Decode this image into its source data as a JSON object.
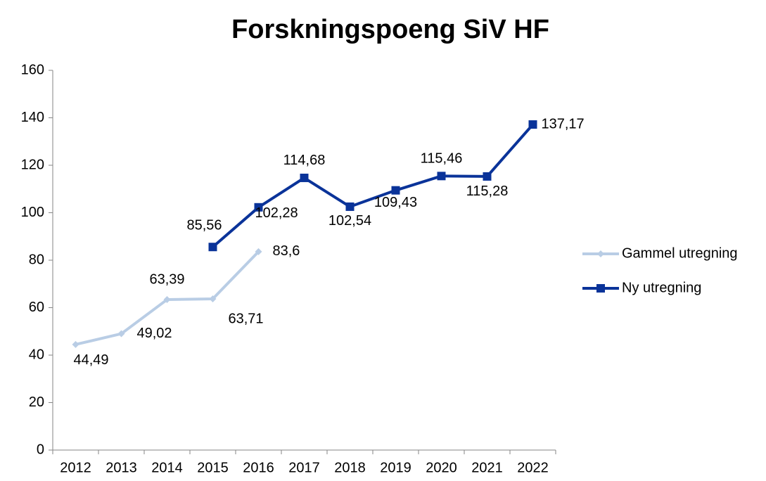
{
  "chart_data": {
    "type": "line",
    "title": "Forskningspoeng SiV HF",
    "categories": [
      "2012",
      "2013",
      "2014",
      "2015",
      "2016",
      "2017",
      "2018",
      "2019",
      "2020",
      "2021",
      "2022"
    ],
    "series": [
      {
        "name": "Gammel utregning",
        "color": "#b9cde5",
        "marker": "diamond",
        "values": [
          44.49,
          49.02,
          63.39,
          63.71,
          83.6,
          null,
          null,
          null,
          null,
          null,
          null
        ],
        "value_labels": [
          "44,49",
          "49,02",
          "63,39",
          "63,71",
          "83,6",
          null,
          null,
          null,
          null,
          null,
          null
        ]
      },
      {
        "name": "Ny utregning",
        "color": "#0a3399",
        "marker": "square",
        "values": [
          null,
          null,
          null,
          85.56,
          102.28,
          114.68,
          102.54,
          109.43,
          115.46,
          115.28,
          137.17
        ],
        "value_labels": [
          null,
          null,
          null,
          "85,56",
          "102,28",
          "114,68",
          "102,54",
          "109,43",
          "115,46",
          "115,28",
          "137,17"
        ]
      }
    ],
    "ylim": [
      0,
      160
    ],
    "yticks": [
      0,
      20,
      40,
      60,
      80,
      100,
      120,
      140,
      160
    ],
    "legend": "right"
  }
}
